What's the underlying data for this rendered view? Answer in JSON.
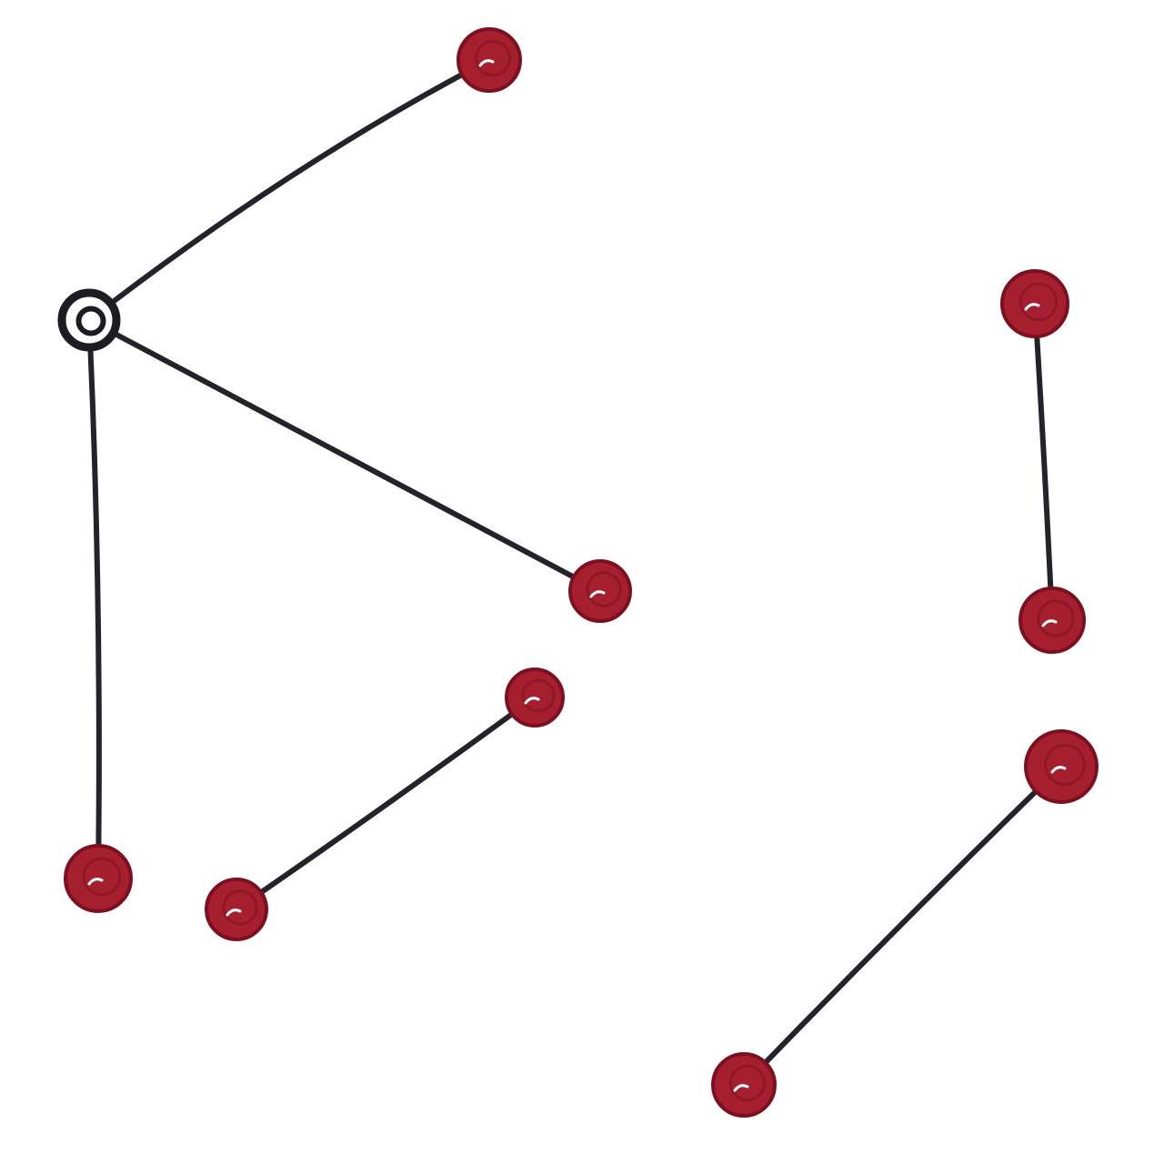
{
  "diagram": {
    "kind": "graph",
    "style": "hand-drawn",
    "background_color": "#ffffff",
    "edge_color": "#24232a",
    "hub_node_color": "#1e1c22",
    "node_fill_color": "#a51f2f",
    "node_rim_color": "#7d1020",
    "text_labels": [],
    "nodes": [
      {
        "id": "hub",
        "role": "hub",
        "filled": false
      },
      {
        "id": "n-top",
        "role": "leaf",
        "filled": true
      },
      {
        "id": "n-mid",
        "role": "leaf",
        "filled": true
      },
      {
        "id": "n-bottom-left",
        "role": "leaf",
        "filled": true
      },
      {
        "id": "n-a1",
        "role": "leaf",
        "filled": true
      },
      {
        "id": "n-a2",
        "role": "leaf",
        "filled": true
      },
      {
        "id": "n-b1",
        "role": "leaf",
        "filled": true
      },
      {
        "id": "n-b2",
        "role": "leaf",
        "filled": true
      },
      {
        "id": "n-c1",
        "role": "leaf",
        "filled": true
      },
      {
        "id": "n-c2",
        "role": "leaf",
        "filled": true
      }
    ],
    "edges": [
      {
        "from": "hub",
        "to": "n-top"
      },
      {
        "from": "hub",
        "to": "n-mid"
      },
      {
        "from": "hub",
        "to": "n-bottom-left"
      },
      {
        "from": "n-a1",
        "to": "n-a2"
      },
      {
        "from": "n-b1",
        "to": "n-b2"
      },
      {
        "from": "n-c1",
        "to": "n-c2"
      }
    ]
  }
}
